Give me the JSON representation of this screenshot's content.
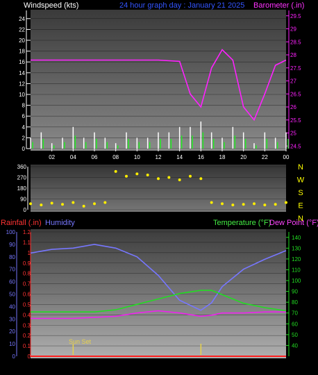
{
  "header": {
    "left_title": "Windspeed (kts)",
    "center_title": "24 hour graph day : January 21 2025",
    "right_title": "Barometer (.in)"
  },
  "labels": {
    "rainfall": "Rainfall (.in)",
    "humidity": "Humidity",
    "temperature": "Temperature (°F)",
    "dewpoint": "Dew Point (°F)",
    "sunset": "Sun Set"
  },
  "x_ticks": [
    "02",
    "04",
    "06",
    "08",
    "10",
    "12",
    "14",
    "16",
    "18",
    "20",
    "22",
    "00"
  ],
  "colors": {
    "wind": "#ffffff",
    "gust": "#22ee22",
    "barometer": "#ff22ff",
    "direction": "#ffee00",
    "humidity": "#7777ff",
    "temperature": "#22dd22",
    "dewpoint": "#ee22ee",
    "rain": "#ff2020",
    "compass": "#ffff00",
    "axis_left": "#ffffff",
    "axis_rain": "#ff3333",
    "axis_humidity": "#7777ff",
    "axis_temp": "#22dd22"
  },
  "chart_data": [
    {
      "type": "line",
      "id": "wind",
      "ylabel": "Windspeed (kts)",
      "ylim": [
        0,
        25
      ],
      "yticks": [
        "0",
        "2",
        "4",
        "6",
        "8",
        "10",
        "12",
        "14",
        "16",
        "18",
        "20",
        "22",
        "24"
      ],
      "series": [
        {
          "name": "Windspeed (kts)",
          "x": [
            0,
            1,
            2,
            3,
            4,
            5,
            6,
            7,
            8,
            9,
            10,
            11,
            12,
            13,
            14,
            15,
            16,
            17,
            18,
            19,
            20,
            21,
            22,
            23,
            24
          ],
          "values": [
            2,
            3,
            1,
            2,
            4,
            2,
            3,
            2,
            1,
            3,
            2,
            2,
            3,
            3,
            4,
            4,
            5,
            3,
            2,
            4,
            3,
            1,
            3,
            2,
            3
          ]
        }
      ]
    },
    {
      "type": "line",
      "id": "barometer",
      "ylabel": "Barometer (.in)",
      "ylim": [
        24.4,
        29.6
      ],
      "yticks": [
        "24.5",
        "25",
        "25.5",
        "26",
        "26.5",
        "27",
        "27.5",
        "28",
        "28.5",
        "29",
        "29.5"
      ],
      "series": [
        {
          "name": "Barometer (.in)",
          "x": [
            0,
            2,
            4,
            6,
            8,
            10,
            12,
            14,
            15,
            16,
            17,
            18,
            19,
            20,
            21,
            22,
            23,
            24
          ],
          "values": [
            27.8,
            27.8,
            27.8,
            27.8,
            27.8,
            27.8,
            27.8,
            27.75,
            26.5,
            26.0,
            27.5,
            28.2,
            27.8,
            26.0,
            25.5,
            26.5,
            27.6,
            27.8
          ]
        }
      ]
    },
    {
      "type": "scatter",
      "id": "wind_direction",
      "ylim": [
        0,
        360
      ],
      "yticks": [
        "0",
        "90",
        "180",
        "270",
        "360"
      ],
      "compass": [
        "N",
        "W",
        "S",
        "E",
        "N"
      ],
      "series": [
        {
          "name": "Wind Direction",
          "x": [
            0,
            1,
            2,
            3,
            4,
            5,
            6,
            7,
            8,
            9,
            10,
            11,
            12,
            13,
            14,
            15,
            16,
            17,
            18,
            19,
            20,
            21,
            22,
            23,
            24
          ],
          "values": [
            50,
            40,
            55,
            45,
            60,
            30,
            50,
            60,
            320,
            280,
            300,
            290,
            260,
            270,
            250,
            280,
            260,
            60,
            50,
            40,
            45,
            50,
            40,
            45,
            60
          ]
        }
      ]
    },
    {
      "type": "line",
      "id": "humidity_temp",
      "left_axis_rain": {
        "label": "Rainfall (.in)",
        "ylim": [
          0,
          1.2
        ],
        "ticks": [
          "0",
          "0.1",
          "0.2",
          "0.3",
          "0.4",
          "0.5",
          "0.6",
          "0.7",
          "0.8",
          "0.9",
          "1",
          "1.1",
          "1.2"
        ]
      },
      "left_axis_humidity": {
        "label": "Humidity",
        "ylim": [
          0,
          100
        ],
        "ticks": [
          "0",
          "10",
          "20",
          "30",
          "40",
          "50",
          "60",
          "70",
          "80",
          "90",
          "100"
        ]
      },
      "right_axis_temp": {
        "label": "Temperature (°F)",
        "ylim": [
          30,
          145
        ],
        "ticks": [
          "40",
          "50",
          "60",
          "70",
          "80",
          "90",
          "100",
          "110",
          "120",
          "130",
          "140"
        ]
      },
      "series": [
        {
          "name": "Humidity",
          "x": [
            0,
            2,
            4,
            6,
            8,
            10,
            12,
            14,
            16,
            17,
            18,
            20,
            22,
            24
          ],
          "values": [
            83,
            86,
            87,
            90,
            87,
            80,
            65,
            45,
            37,
            43,
            56,
            70,
            78,
            85
          ]
        },
        {
          "name": "Temperature (°F)",
          "x": [
            0,
            2,
            4,
            6,
            8,
            10,
            12,
            14,
            16,
            17,
            18,
            20,
            22,
            24
          ],
          "values": [
            71,
            71,
            71,
            71,
            73,
            78,
            83,
            88,
            91,
            91,
            87,
            79,
            75,
            72
          ]
        },
        {
          "name": "Dew Point (°F)",
          "x": [
            0,
            2,
            4,
            6,
            8,
            10,
            12,
            14,
            16,
            17,
            18,
            20,
            22,
            24
          ],
          "values": [
            65,
            65,
            65,
            66,
            67,
            70,
            72,
            70,
            67,
            68,
            70,
            70,
            71,
            71
          ]
        },
        {
          "name": "Rainfall (.in)",
          "x": [
            0,
            24
          ],
          "values": [
            0,
            0
          ]
        }
      ],
      "annotations": [
        {
          "text": "Sun Set",
          "x": 4
        },
        {
          "text": "",
          "x": 16
        }
      ]
    }
  ]
}
